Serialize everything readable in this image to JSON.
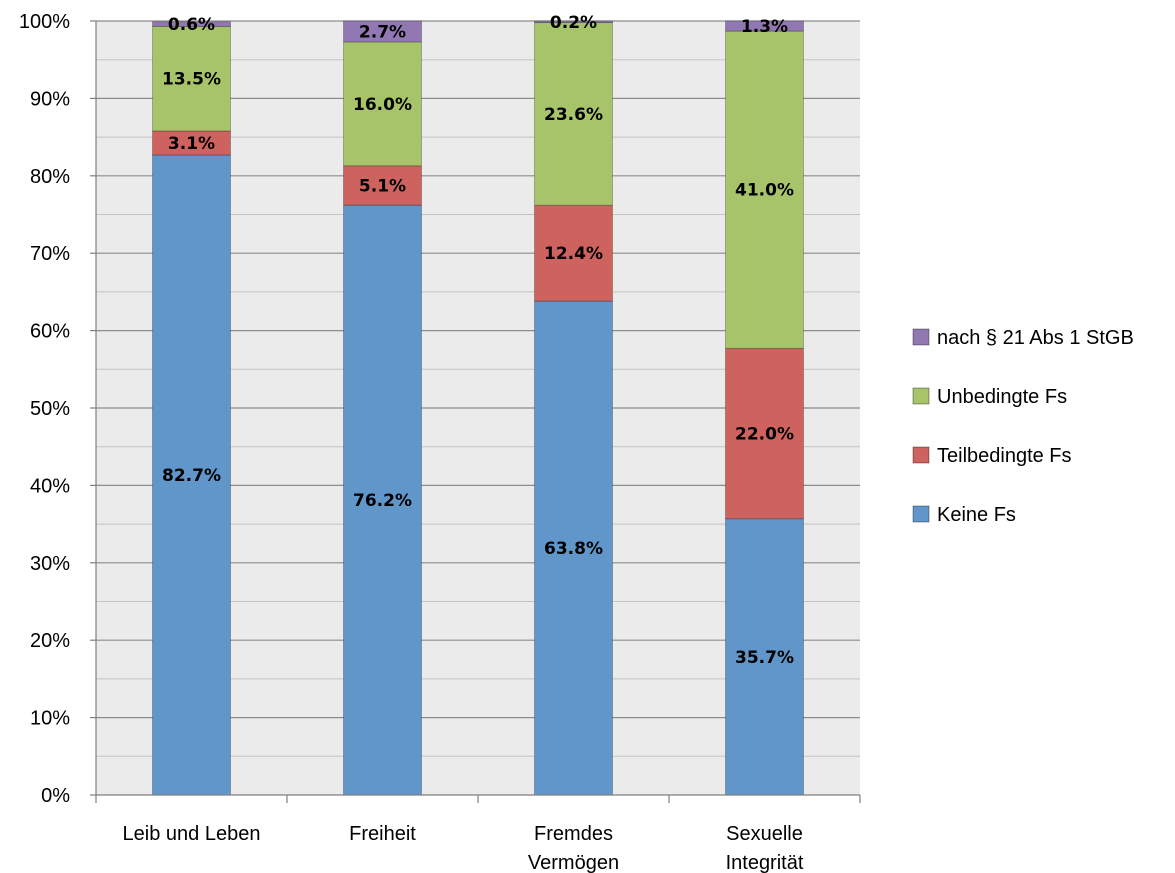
{
  "chart_data": {
    "type": "bar",
    "stacked": true,
    "categories": [
      [
        "Leib und Leben"
      ],
      [
        "Freiheit"
      ],
      [
        "Fremdes",
        "Vermögen"
      ],
      [
        "Sexuelle",
        "Integrität"
      ]
    ],
    "series": [
      {
        "name": "Keine Fs",
        "color": "#6096c9",
        "values": [
          82.7,
          76.2,
          63.8,
          35.7
        ]
      },
      {
        "name": "Teilbedingte Fs",
        "color": "#cd625e",
        "values": [
          3.1,
          5.1,
          12.4,
          22.0
        ]
      },
      {
        "name": "Unbedingte Fs",
        "color": "#a8c46a",
        "values": [
          13.5,
          16.0,
          23.6,
          41.0
        ]
      },
      {
        "name": "nach § 21 Abs 1 StGB",
        "color": "#9278b3",
        "values": [
          0.6,
          2.7,
          0.2,
          1.3
        ]
      }
    ],
    "data_labels": [
      [
        "82.7%",
        "76.2%",
        "63.8%",
        "35.7%"
      ],
      [
        "3.1%",
        "5.1%",
        "12.4%",
        "22.0%"
      ],
      [
        "13.5%",
        "16.0%",
        "23.6%",
        "41.0%"
      ],
      [
        "0.6%",
        "2.7%",
        "0.2%",
        "1.3%"
      ]
    ],
    "y_ticks": [
      "0%",
      "10%",
      "20%",
      "30%",
      "40%",
      "50%",
      "60%",
      "70%",
      "80%",
      "90%",
      "100%"
    ],
    "ylim": [
      0,
      100
    ],
    "grid": true,
    "legend_position": "right",
    "legend_order": [
      3,
      2,
      1,
      0
    ],
    "title": "",
    "xlabel": "",
    "ylabel": ""
  }
}
